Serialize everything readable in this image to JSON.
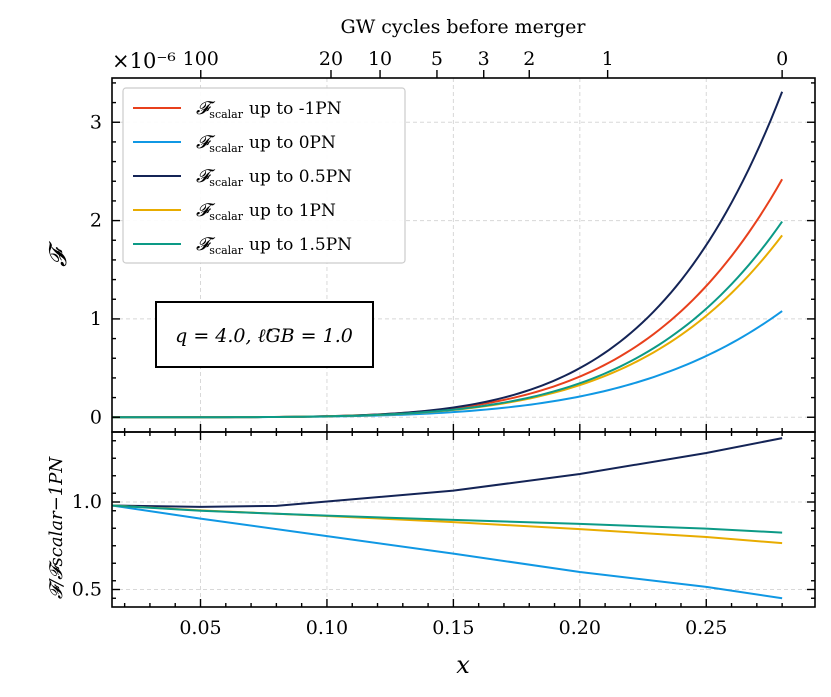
{
  "chart_data": [
    {
      "panel": "top",
      "type": "line",
      "title": "",
      "ylabel": "𝓕",
      "y_scale_label": "×10⁻⁶",
      "xlim": [
        0.015,
        0.293
      ],
      "ylim": [
        -0.15,
        3.45
      ],
      "grid": true,
      "xticks": [
        0.05,
        0.1,
        0.15,
        0.2,
        0.25
      ],
      "yticks": [
        0,
        1,
        2,
        3
      ],
      "ytick_labels": [
        "0",
        "1",
        "2",
        "3"
      ],
      "top_axis": {
        "label": "GW cycles before merger",
        "ticks": [
          {
            "x": 0.0501,
            "label": "100"
          },
          {
            "x": 0.1016,
            "label": "20"
          },
          {
            "x": 0.121,
            "label": "10"
          },
          {
            "x": 0.1435,
            "label": "5"
          },
          {
            "x": 0.162,
            "label": "3"
          },
          {
            "x": 0.18,
            "label": "2"
          },
          {
            "x": 0.211,
            "label": "1"
          },
          {
            "x": 0.28,
            "label": "0"
          }
        ]
      },
      "legend": {
        "position": "top-left",
        "entries": [
          {
            "symbol": "𝓕",
            "sub": "scalar",
            "text": "up to -1PN"
          },
          {
            "symbol": "𝓕",
            "sub": "scalar",
            "text": "up to 0PN"
          },
          {
            "symbol": "𝓕",
            "sub": "scalar",
            "text": "up to 0.5PN"
          },
          {
            "symbol": "𝓕",
            "sub": "scalar",
            "text": "up to 1PN"
          },
          {
            "symbol": "𝓕",
            "sub": "scalar",
            "text": "up to 1.5PN"
          }
        ]
      },
      "annotation": "q = 4.0,  ℓ̂GB = 1.0",
      "series": [
        {
          "name": "up to -1PN",
          "color": "#e8401c",
          "x_max": 0.28,
          "y_end": 2.42,
          "power": 5.25
        },
        {
          "name": "up to 0PN",
          "color": "#1098e4",
          "x_max": 0.28,
          "y_end": 1.08,
          "power": 4.85
        },
        {
          "name": "up to 0.5PN",
          "color": "#142456",
          "x_max": 0.28,
          "y_end": 3.31,
          "power": 5.62
        },
        {
          "name": "up to 1PN",
          "color": "#e8ac00",
          "x_max": 0.28,
          "y_end": 1.85,
          "power": 5.15
        },
        {
          "name": "up to 1.5PN",
          "color": "#0c9a86",
          "x_max": 0.28,
          "y_end": 1.99,
          "power": 5.2
        }
      ]
    },
    {
      "panel": "bottom",
      "type": "line",
      "xlabel": "x",
      "ylabel": "𝓕/𝓕scalar−1PN",
      "xlim": [
        0.015,
        0.293
      ],
      "ylim": [
        0.4,
        1.4
      ],
      "grid": true,
      "xticks": [
        0.05,
        0.1,
        0.15,
        0.2,
        0.25
      ],
      "xtick_labels": [
        "0.05",
        "0.10",
        "0.15",
        "0.20",
        "0.25"
      ],
      "yticks": [
        0.5,
        1.0
      ],
      "ytick_labels": [
        "0.5",
        "1.0"
      ],
      "series": [
        {
          "name": "up to 0PN",
          "color": "#1098e4",
          "points": [
            [
              0.015,
              0.98
            ],
            [
              0.05,
              0.905
            ],
            [
              0.1,
              0.805
            ],
            [
              0.15,
              0.705
            ],
            [
              0.2,
              0.6
            ],
            [
              0.25,
              0.515
            ],
            [
              0.28,
              0.45
            ]
          ]
        },
        {
          "name": "up to 0.5PN",
          "color": "#142456",
          "points": [
            [
              0.015,
              0.98
            ],
            [
              0.05,
              0.972
            ],
            [
              0.08,
              0.978
            ],
            [
              0.1,
              1.003
            ],
            [
              0.15,
              1.065
            ],
            [
              0.2,
              1.16
            ],
            [
              0.25,
              1.28
            ],
            [
              0.28,
              1.365
            ]
          ]
        },
        {
          "name": "up to 1PN",
          "color": "#e8ac00",
          "points": [
            [
              0.015,
              0.98
            ],
            [
              0.05,
              0.952
            ],
            [
              0.1,
              0.92
            ],
            [
              0.15,
              0.885
            ],
            [
              0.2,
              0.845
            ],
            [
              0.25,
              0.8
            ],
            [
              0.28,
              0.765
            ]
          ]
        },
        {
          "name": "up to 1.5PN",
          "color": "#0c9a86",
          "points": [
            [
              0.015,
              0.98
            ],
            [
              0.05,
              0.95
            ],
            [
              0.1,
              0.922
            ],
            [
              0.15,
              0.898
            ],
            [
              0.2,
              0.875
            ],
            [
              0.25,
              0.848
            ],
            [
              0.28,
              0.825
            ]
          ]
        }
      ]
    }
  ]
}
